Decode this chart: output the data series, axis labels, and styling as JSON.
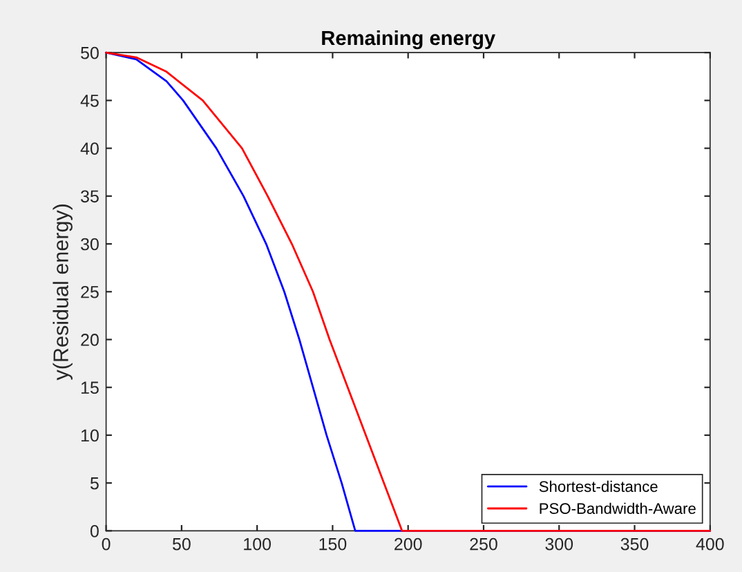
{
  "chart_data": {
    "type": "line",
    "title": "Remaining energy",
    "ylabel": "y(Residual energy)",
    "xlim": [
      0,
      400
    ],
    "ylim": [
      0,
      50
    ],
    "xticks": [
      0,
      50,
      100,
      150,
      200,
      250,
      300,
      350,
      400
    ],
    "yticks": [
      0,
      5,
      10,
      15,
      20,
      25,
      30,
      35,
      40,
      45,
      50
    ],
    "grid": false,
    "legend": "bottom right",
    "marker": "none",
    "line_style": "solid",
    "series": [
      {
        "name": "Shortest-distance",
        "color": "#0000ff",
        "x": [
          0,
          20,
          40,
          51,
          73,
          91,
          106,
          118,
          128,
          137,
          146,
          156,
          165,
          400
        ],
        "values": [
          50,
          49.3,
          47,
          45,
          40,
          35,
          30,
          25,
          20,
          15,
          10,
          5,
          0,
          0
        ]
      },
      {
        "name": "PSO-Bandwidth-Aware",
        "color": "#ff0000",
        "x": [
          0,
          20,
          40,
          64,
          90,
          107,
          123,
          137,
          148,
          160,
          172,
          184,
          196,
          400
        ],
        "values": [
          50,
          49.5,
          48,
          45,
          40,
          35,
          30,
          25,
          20,
          15,
          10,
          5,
          0,
          0
        ]
      }
    ]
  }
}
